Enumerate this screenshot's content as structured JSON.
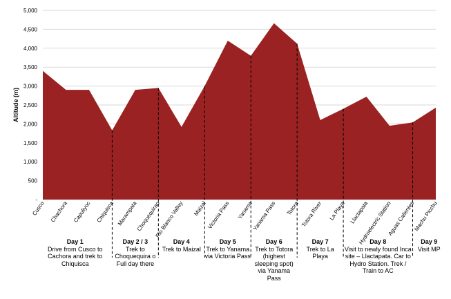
{
  "chart_data": {
    "type": "area",
    "categories": [
      "Cusco",
      "Chachora",
      "Capuliyoc",
      "Chiquisca",
      "Marampata",
      "Choquequirao",
      "Rio Blanco Valley",
      "Maizal",
      "Victoria Pass",
      "Yanama",
      "Yanama Pass",
      "Totora",
      "Totora River",
      "La Playa",
      "Llactapata",
      "Hydroelectric Station",
      "Aguas Calientes",
      "Machu Picchu"
    ],
    "values": [
      3400,
      2900,
      2900,
      1830,
      2900,
      2950,
      1920,
      3000,
      4200,
      3800,
      4660,
      4120,
      2100,
      2400,
      2720,
      1950,
      2040,
      2430
    ],
    "ylabel": "Altitude (m)",
    "xlabel": "",
    "ylim": [
      0,
      5000
    ],
    "yticks": [
      "-",
      "500",
      "1,000",
      "1,500",
      "2,000",
      "2,500",
      "3,000",
      "3,500",
      "4,000",
      "4,500",
      "5,000"
    ],
    "area_color": "#9b2222",
    "grid": true,
    "day_dividers_after": [
      3,
      5,
      7,
      9,
      11,
      13,
      16
    ],
    "days": [
      {
        "title": "Day 1",
        "desc": "Drive from Cusco to Cachora and trek to Chiquisca"
      },
      {
        "title": "Day 2 / 3",
        "desc": "Trek to Choquequira o Full day there"
      },
      {
        "title": "Day 4",
        "desc": "Trek to Maizal"
      },
      {
        "title": "Day 5",
        "desc": "Trek to Yanama via Victoria Pass"
      },
      {
        "title": "Day 6",
        "desc": "Trek to Totora (highest sleeping spot) via Yanama Pass"
      },
      {
        "title": "Day 7",
        "desc": "Trek to La Playa"
      },
      {
        "title": "Day 8",
        "desc": "Visit to newly found Inca site – Llactapata. Car to Hydro Station. Trek / Train to AC"
      },
      {
        "title": "Day 9",
        "desc": "Visit MP"
      }
    ]
  }
}
